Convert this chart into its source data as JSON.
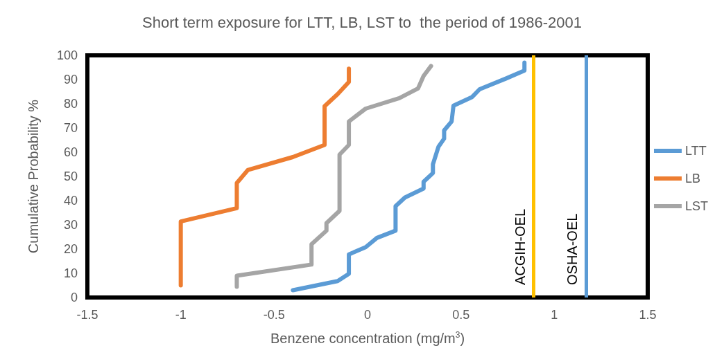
{
  "chart_data": {
    "type": "line",
    "title": "Short term exposure for LTT, LB, LST to  the period of 1986-2001",
    "xlabel": "Benzene concentration (mg/m$^{3}$)",
    "ylabel": "Cumulative Probability %",
    "xlim": [
      -1.5,
      1.5
    ],
    "xticks": [
      -1.5,
      -1,
      -0.5,
      0,
      0.5,
      1,
      1.5
    ],
    "ylim": [
      0,
      100
    ],
    "yticks": [
      0,
      10,
      20,
      30,
      40,
      50,
      60,
      70,
      80,
      90,
      100
    ],
    "grid": false,
    "legend": "right",
    "marker": "none",
    "line_style": "solid",
    "series": [
      {
        "name": "LTT",
        "color": "#5b9bd5",
        "x": [
          -0.4,
          -0.16,
          -0.1,
          -0.1,
          -0.01,
          0.05,
          0.15,
          0.15,
          0.2,
          0.3,
          0.3,
          0.35,
          0.35,
          0.38,
          0.41,
          0.41,
          0.45,
          0.46,
          0.56,
          0.6,
          0.74,
          0.84,
          0.84
        ],
        "values": [
          3,
          6.8,
          9.8,
          17.8,
          20.8,
          24.6,
          27.6,
          37.7,
          41.3,
          45,
          47.8,
          51.4,
          55,
          62.3,
          65.6,
          69,
          72.7,
          79.2,
          82.8,
          86,
          90.4,
          93.7,
          97
        ]
      },
      {
        "name": "LB",
        "color": "#ed7d31",
        "x": [
          -1,
          -1,
          -0.7,
          -0.7,
          -0.64,
          -0.4,
          -0.23,
          -0.23,
          -0.16,
          -0.1,
          -0.1
        ],
        "values": [
          5,
          31.4,
          36.9,
          47.3,
          52.7,
          58,
          63,
          79,
          84,
          89,
          94.5
        ]
      },
      {
        "name": "LST",
        "color": "#a5a5a5",
        "x": [
          -0.7,
          -0.7,
          -0.3,
          -0.3,
          -0.22,
          -0.22,
          -0.15,
          -0.15,
          -0.1,
          -0.1,
          -0.01,
          0.17,
          0.27,
          0.3,
          0.34
        ],
        "values": [
          4.4,
          9,
          13.6,
          22,
          27.6,
          30.7,
          35.8,
          59,
          63,
          72.7,
          78,
          82.3,
          86.3,
          91.5,
          95.6
        ]
      }
    ],
    "ref_lines": [
      {
        "axis": "x",
        "value": 0.89,
        "label": "ACGIH-OEL",
        "color": "#ffc000"
      },
      {
        "axis": "x",
        "value": 1.17,
        "label": "OSHA-OEL",
        "color": "#5b9bd5"
      }
    ]
  }
}
